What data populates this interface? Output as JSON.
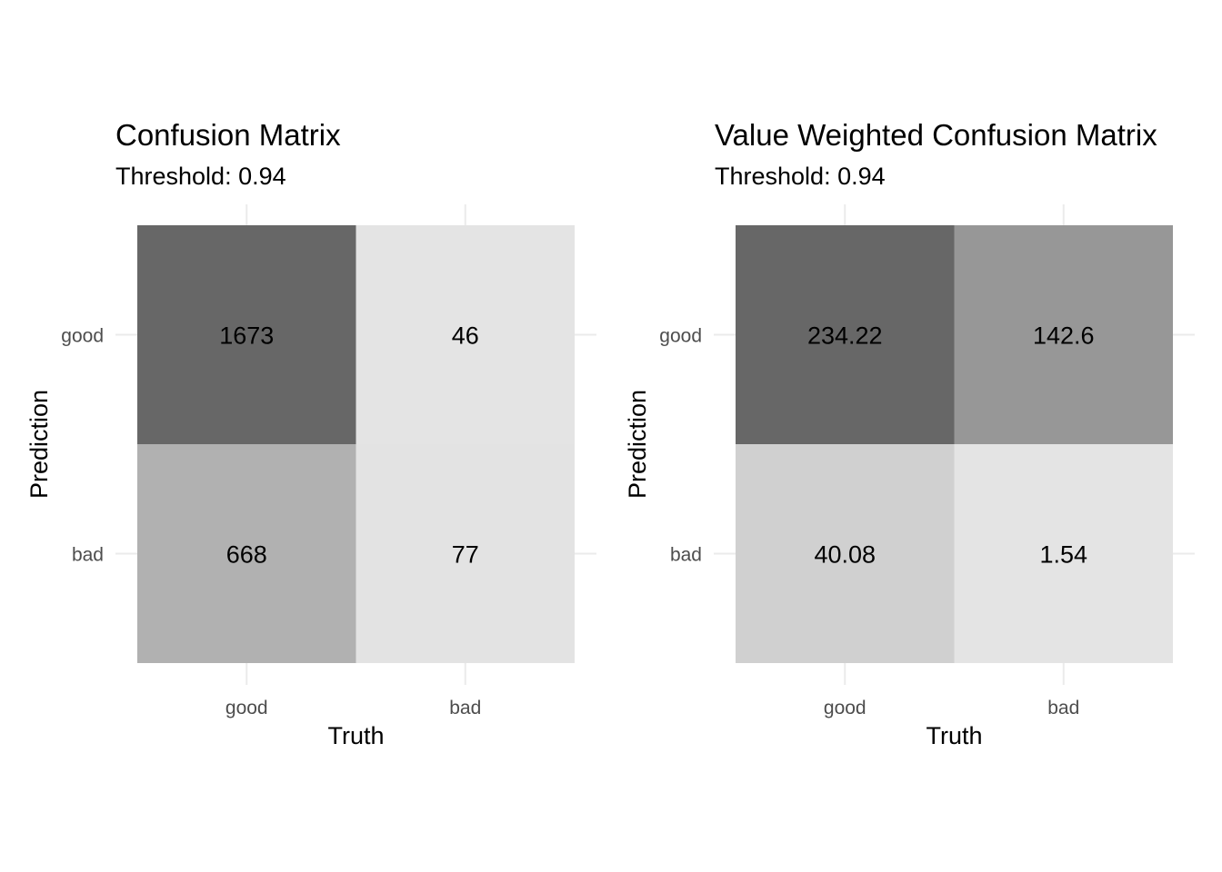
{
  "chart_data": [
    {
      "type": "heatmap",
      "title": "Confusion Matrix",
      "subtitle": "Threshold: 0.94",
      "xlabel": "Truth",
      "ylabel": "Prediction",
      "x_categories": [
        "good",
        "bad"
      ],
      "y_categories": [
        "good",
        "bad"
      ],
      "cells": [
        {
          "truth": "good",
          "prediction": "good",
          "value": 1673,
          "label": "1673",
          "fill": "#676767"
        },
        {
          "truth": "bad",
          "prediction": "good",
          "value": 46,
          "label": "46",
          "fill": "#e4e4e4"
        },
        {
          "truth": "good",
          "prediction": "bad",
          "value": 668,
          "label": "668",
          "fill": "#b1b1b1"
        },
        {
          "truth": "bad",
          "prediction": "bad",
          "value": 77,
          "label": "77",
          "fill": "#e3e3e3"
        }
      ],
      "grid": true,
      "legend": "none"
    },
    {
      "type": "heatmap",
      "title": "Value Weighted Confusion Matrix",
      "subtitle": "Threshold: 0.94",
      "xlabel": "Truth",
      "ylabel": "Prediction",
      "x_categories": [
        "good",
        "bad"
      ],
      "y_categories": [
        "good",
        "bad"
      ],
      "cells": [
        {
          "truth": "good",
          "prediction": "good",
          "value": 234.22,
          "label": "234.22",
          "fill": "#676767"
        },
        {
          "truth": "bad",
          "prediction": "good",
          "value": 142.6,
          "label": "142.6",
          "fill": "#979797"
        },
        {
          "truth": "good",
          "prediction": "bad",
          "value": 40.08,
          "label": "40.08",
          "fill": "#d0d0d0"
        },
        {
          "truth": "bad",
          "prediction": "bad",
          "value": 1.54,
          "label": "1.54",
          "fill": "#e4e4e4"
        }
      ],
      "grid": true,
      "legend": "none"
    }
  ]
}
